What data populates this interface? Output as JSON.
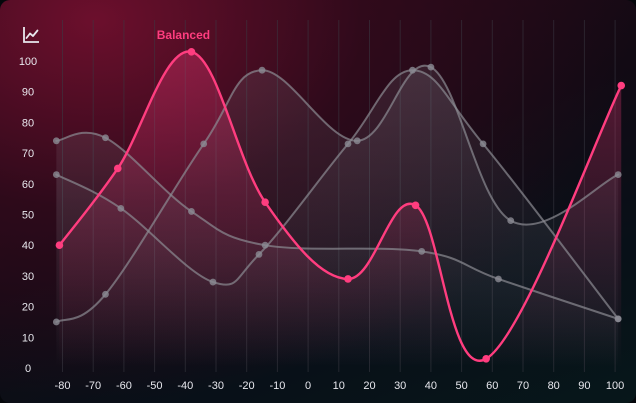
{
  "colors": {
    "accent": "#ff3d7f",
    "muted": "#8b8b93",
    "grid": "#3a3a44",
    "text": "#e8e8ee"
  },
  "icons": {
    "chart": "line-chart-icon"
  },
  "chart_data": {
    "type": "line",
    "title": "",
    "xlabel": "",
    "ylabel": "",
    "xlim": [
      -85,
      102
    ],
    "ylim": [
      0,
      100
    ],
    "x_ticks": [
      -80,
      -70,
      -60,
      -50,
      -40,
      -30,
      -20,
      -10,
      0,
      10,
      20,
      30,
      40,
      50,
      60,
      70,
      80,
      90,
      100
    ],
    "y_ticks": [
      0,
      10,
      20,
      30,
      40,
      50,
      60,
      70,
      80,
      90,
      100
    ],
    "grid": {
      "vertical": true,
      "horizontal": false
    },
    "series": [
      {
        "name": "Balanced",
        "highlight": true,
        "points": [
          [
            -81,
            40
          ],
          [
            -62,
            65
          ],
          [
            -38,
            103
          ],
          [
            -14,
            54
          ],
          [
            13,
            29
          ],
          [
            35,
            53
          ],
          [
            58,
            3
          ],
          [
            102,
            92
          ]
        ]
      },
      {
        "name": "",
        "points": [
          [
            -82,
            74
          ],
          [
            -66,
            75
          ],
          [
            -38,
            51
          ],
          [
            -14,
            40
          ],
          [
            37,
            38
          ],
          [
            62,
            29
          ],
          [
            101,
            16
          ]
        ]
      },
      {
        "name": "",
        "points": [
          [
            -82,
            15
          ],
          [
            -66,
            24
          ],
          [
            -34,
            73
          ],
          [
            -15,
            97
          ],
          [
            16,
            74
          ],
          [
            40,
            98
          ],
          [
            66,
            48
          ],
          [
            101,
            63
          ]
        ]
      },
      {
        "name": "",
        "points": [
          [
            -82,
            63
          ],
          [
            -61,
            52
          ],
          [
            -31,
            28
          ],
          [
            -16,
            37
          ],
          [
            13,
            73
          ],
          [
            34,
            97
          ],
          [
            57,
            73
          ],
          [
            101,
            16
          ]
        ]
      }
    ]
  }
}
